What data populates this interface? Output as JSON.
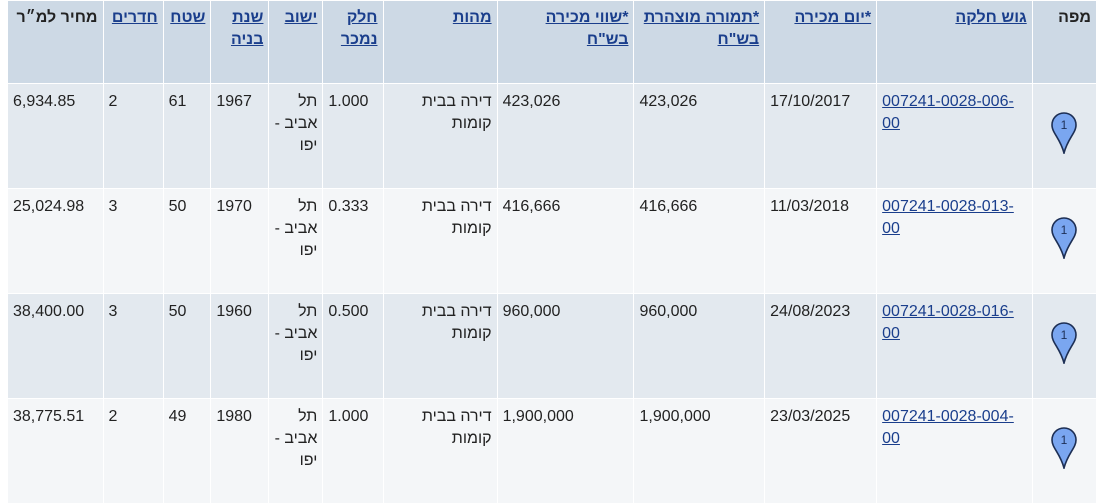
{
  "headers": {
    "map": "מפה",
    "gush": "גוש חלקה",
    "sale_date": "*יום מכירה",
    "declared": "*תמורה מוצהרת בש\"ח",
    "sale_value": "*שווי מכירה בש\"ח",
    "nature": "מהות",
    "share": "חלק נמכר",
    "city": "ישוב",
    "year": "שנת בניה",
    "area": "שטח",
    "rooms": "חדרים",
    "price_sqm": "מחיר למ״ר"
  },
  "pin_label": "1",
  "pin_icon": "map-pin-icon",
  "colors": {
    "pin_fill": "#7aa6f0",
    "header_bg": "#cdd9e5",
    "link": "#1a3e8c"
  },
  "rows": [
    {
      "gush": "007241-0028-006-00",
      "sale_date": "17/10/2017",
      "declared": "423,026",
      "sale_value": "423,026",
      "nature": "דירה בבית קומות",
      "share": "1.000",
      "city": "תל אביב -יפו",
      "year": "1967",
      "area": "61",
      "rooms": "2",
      "price_sqm": "6,934.85"
    },
    {
      "gush": "007241-0028-013-00",
      "sale_date": "11/03/2018",
      "declared": "416,666",
      "sale_value": "416,666",
      "nature": "דירה בבית קומות",
      "share": "0.333",
      "city": "תל אביב -יפו",
      "year": "1970",
      "area": "50",
      "rooms": "3",
      "price_sqm": "25,024.98"
    },
    {
      "gush": "007241-0028-016-00",
      "sale_date": "24/08/2023",
      "declared": "960,000",
      "sale_value": "960,000",
      "nature": "דירה בבית קומות",
      "share": "0.500",
      "city": "תל אביב -יפו",
      "year": "1960",
      "area": "50",
      "rooms": "3",
      "price_sqm": "38,400.00"
    },
    {
      "gush": "007241-0028-004-00",
      "sale_date": "23/03/2025",
      "declared": "1,900,000",
      "sale_value": "1,900,000",
      "nature": "דירה בבית קומות",
      "share": "1.000",
      "city": "תל אביב -יפו",
      "year": "1980",
      "area": "49",
      "rooms": "2",
      "price_sqm": "38,775.51"
    }
  ]
}
